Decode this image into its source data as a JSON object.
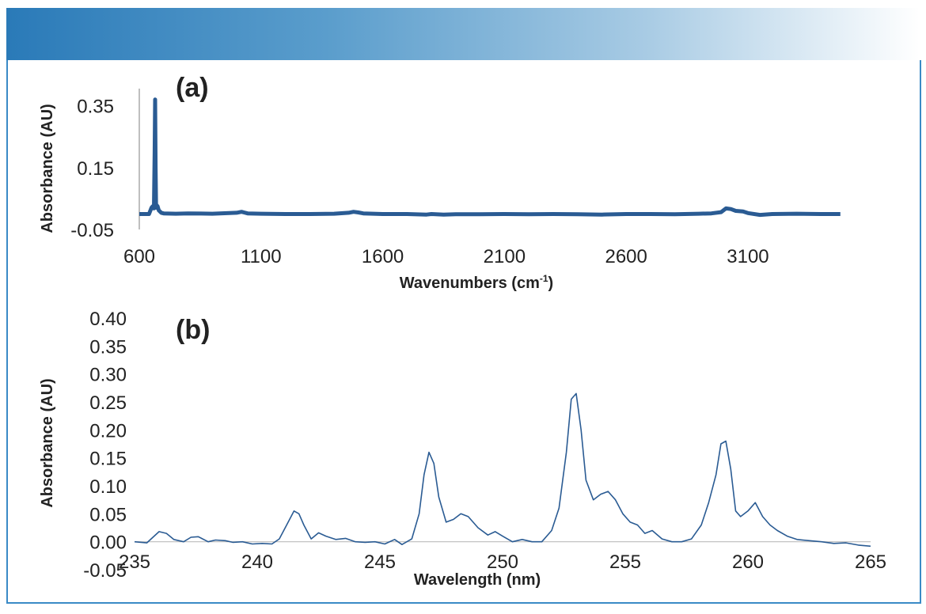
{
  "colors": {
    "banner_start": "#2a7ab8",
    "frame": "#3a8ac6",
    "line": "#2a5b93"
  },
  "chart_data": [
    {
      "type": "line",
      "panel_label": "(a)",
      "xlabel": "Wavenumbers (cm",
      "xlabel_sup": "-1",
      "xlabel_end": ")",
      "ylabel": "Absorbance (AU)",
      "xlim": [
        600,
        3500
      ],
      "ylim": [
        -0.05,
        0.39
      ],
      "xticks": [
        "600",
        "1100",
        "1600",
        "2100",
        "2600",
        "3100"
      ],
      "yticks": [
        "0.35",
        "0.15",
        "-0.05"
      ],
      "series": [
        {
          "x": [
            600,
            640,
            650,
            655,
            660,
            663,
            665,
            667,
            669,
            672,
            675,
            680,
            690,
            700,
            750,
            800,
            900,
            1000,
            1020,
            1030,
            1045,
            1100,
            1200,
            1300,
            1400,
            1460,
            1480,
            1500,
            1520,
            1600,
            1700,
            1780,
            1800,
            1850,
            1900,
            2000,
            2100,
            2200,
            2300,
            2400,
            2500,
            2600,
            2700,
            2800,
            2900,
            2950,
            2990,
            3010,
            3030,
            3050,
            3080,
            3100,
            3150,
            3200,
            3300,
            3400,
            3480
          ],
          "y": [
            0.0,
            0.0,
            0.02,
            0.025,
            0.018,
            0.2,
            0.37,
            0.15,
            0.02,
            0.028,
            0.025,
            0.012,
            0.004,
            0.002,
            0.001,
            0.002,
            0.001,
            0.004,
            0.007,
            0.005,
            0.002,
            0.001,
            0.0,
            0.0,
            0.001,
            0.004,
            0.007,
            0.005,
            0.002,
            0.0,
            0.0,
            -0.002,
            0.0,
            -0.002,
            -0.001,
            -0.001,
            0.0,
            -0.001,
            0.0,
            -0.001,
            -0.002,
            0.0,
            0.0,
            -0.001,
            0.001,
            0.002,
            0.006,
            0.018,
            0.016,
            0.01,
            0.008,
            0.003,
            -0.003,
            0.0,
            0.001,
            0.0,
            0.0
          ]
        }
      ]
    },
    {
      "type": "line",
      "panel_label": "(b)",
      "xlabel": "Wavelength (nm)",
      "ylabel": "Absorbance (AU)",
      "xlim": [
        235,
        265
      ],
      "ylim": [
        -0.05,
        0.4
      ],
      "xticks": [
        "235",
        "240",
        "245",
        "250",
        "255",
        "260",
        "265"
      ],
      "yticks": [
        "0.40",
        "0.35",
        "0.30",
        "0.25",
        "0.20",
        "0.15",
        "0.10",
        "0.05",
        "0.00",
        "-0.05"
      ],
      "series": [
        {
          "x": [
            235,
            235.5,
            236,
            236.3,
            236.6,
            237,
            237.3,
            237.6,
            238,
            238.3,
            238.7,
            239,
            239.4,
            239.8,
            240.2,
            240.6,
            240.9,
            241.2,
            241.5,
            241.7,
            241.9,
            242.2,
            242.5,
            242.8,
            243.2,
            243.6,
            244,
            244.4,
            244.8,
            245.2,
            245.6,
            245.9,
            246.3,
            246.6,
            246.8,
            247,
            247.2,
            247.4,
            247.7,
            248,
            248.3,
            248.6,
            249,
            249.4,
            249.7,
            250,
            250.4,
            250.8,
            251.2,
            251.6,
            252,
            252.3,
            252.6,
            252.8,
            253,
            253.2,
            253.4,
            253.7,
            254,
            254.3,
            254.6,
            254.9,
            255.2,
            255.5,
            255.8,
            256.1,
            256.5,
            256.9,
            257.3,
            257.7,
            258.1,
            258.4,
            258.7,
            258.9,
            259.1,
            259.3,
            259.5,
            259.7,
            260,
            260.3,
            260.6,
            260.9,
            261.2,
            261.6,
            262,
            262.5,
            263,
            263.5,
            264,
            264.5,
            265
          ],
          "y": [
            0.0,
            -0.002,
            0.018,
            0.015,
            0.004,
            0.0,
            0.008,
            0.009,
            0.0,
            0.003,
            0.002,
            -0.001,
            0.0,
            -0.004,
            -0.003,
            -0.004,
            0.005,
            0.03,
            0.055,
            0.05,
            0.03,
            0.005,
            0.016,
            0.01,
            0.004,
            0.006,
            0.0,
            -0.001,
            0.0,
            -0.004,
            0.004,
            -0.005,
            0.005,
            0.05,
            0.12,
            0.16,
            0.14,
            0.08,
            0.035,
            0.04,
            0.05,
            0.045,
            0.025,
            0.012,
            0.018,
            0.01,
            0.0,
            0.004,
            0.0,
            0.0,
            0.02,
            0.06,
            0.16,
            0.255,
            0.265,
            0.2,
            0.11,
            0.075,
            0.085,
            0.09,
            0.075,
            0.05,
            0.035,
            0.03,
            0.015,
            0.02,
            0.005,
            0.0,
            0.0,
            0.005,
            0.03,
            0.07,
            0.12,
            0.175,
            0.18,
            0.13,
            0.055,
            0.045,
            0.055,
            0.07,
            0.045,
            0.03,
            0.02,
            0.01,
            0.004,
            0.002,
            0.0,
            -0.003,
            -0.002,
            -0.006,
            -0.008
          ]
        }
      ]
    }
  ]
}
